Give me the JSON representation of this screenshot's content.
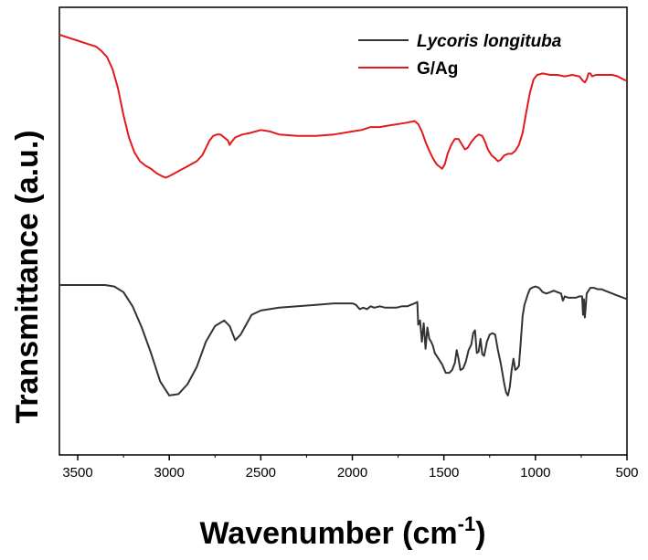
{
  "chart_data": {
    "type": "line",
    "xlabel": "Wavenumber (cm",
    "xlabel_superscript": "-1",
    "xlabel_close": ")",
    "ylabel": "Transmittance (a.u.)",
    "xlim": [
      3600,
      500
    ],
    "x_reversed": true,
    "xticks": [
      3500,
      3000,
      2500,
      2000,
      1500,
      1000,
      500
    ],
    "y_tick_labels": false,
    "legend_placement": "top-right",
    "series": [
      {
        "name": "Lycoris longituba",
        "name_italic": true,
        "color": "#333333",
        "points": [
          [
            3600,
            0.0
          ],
          [
            3500,
            0.0
          ],
          [
            3400,
            0.0
          ],
          [
            3350,
            0.0
          ],
          [
            3300,
            0.01
          ],
          [
            3250,
            0.05
          ],
          [
            3200,
            0.15
          ],
          [
            3150,
            0.3
          ],
          [
            3100,
            0.48
          ],
          [
            3050,
            0.68
          ],
          [
            3000,
            0.78
          ],
          [
            2950,
            0.77
          ],
          [
            2900,
            0.7
          ],
          [
            2850,
            0.58
          ],
          [
            2800,
            0.4
          ],
          [
            2750,
            0.29
          ],
          [
            2700,
            0.25
          ],
          [
            2670,
            0.29
          ],
          [
            2640,
            0.39
          ],
          [
            2610,
            0.35
          ],
          [
            2580,
            0.28
          ],
          [
            2550,
            0.21
          ],
          [
            2500,
            0.18
          ],
          [
            2400,
            0.16
          ],
          [
            2300,
            0.15
          ],
          [
            2200,
            0.14
          ],
          [
            2100,
            0.13
          ],
          [
            2050,
            0.13
          ],
          [
            2000,
            0.13
          ],
          [
            1980,
            0.14
          ],
          [
            1960,
            0.17
          ],
          [
            1940,
            0.16
          ],
          [
            1920,
            0.17
          ],
          [
            1900,
            0.15
          ],
          [
            1880,
            0.16
          ],
          [
            1850,
            0.15
          ],
          [
            1820,
            0.16
          ],
          [
            1790,
            0.16
          ],
          [
            1760,
            0.16
          ],
          [
            1730,
            0.15
          ],
          [
            1700,
            0.15
          ],
          [
            1660,
            0.13
          ],
          [
            1645,
            0.12
          ],
          [
            1640,
            0.28
          ],
          [
            1630,
            0.25
          ],
          [
            1620,
            0.4
          ],
          [
            1610,
            0.27
          ],
          [
            1600,
            0.45
          ],
          [
            1590,
            0.3
          ],
          [
            1580,
            0.38
          ],
          [
            1570,
            0.4
          ],
          [
            1560,
            0.43
          ],
          [
            1550,
            0.48
          ],
          [
            1530,
            0.52
          ],
          [
            1510,
            0.56
          ],
          [
            1490,
            0.62
          ],
          [
            1470,
            0.62
          ],
          [
            1455,
            0.6
          ],
          [
            1440,
            0.55
          ],
          [
            1430,
            0.46
          ],
          [
            1420,
            0.52
          ],
          [
            1410,
            0.6
          ],
          [
            1395,
            0.59
          ],
          [
            1380,
            0.54
          ],
          [
            1365,
            0.46
          ],
          [
            1350,
            0.42
          ],
          [
            1340,
            0.34
          ],
          [
            1330,
            0.32
          ],
          [
            1320,
            0.48
          ],
          [
            1310,
            0.47
          ],
          [
            1300,
            0.38
          ],
          [
            1290,
            0.49
          ],
          [
            1280,
            0.5
          ],
          [
            1265,
            0.4
          ],
          [
            1250,
            0.35
          ],
          [
            1235,
            0.34
          ],
          [
            1220,
            0.35
          ],
          [
            1205,
            0.46
          ],
          [
            1190,
            0.55
          ],
          [
            1170,
            0.7
          ],
          [
            1160,
            0.76
          ],
          [
            1150,
            0.78
          ],
          [
            1140,
            0.72
          ],
          [
            1130,
            0.6
          ],
          [
            1120,
            0.52
          ],
          [
            1110,
            0.6
          ],
          [
            1100,
            0.59
          ],
          [
            1090,
            0.57
          ],
          [
            1080,
            0.4
          ],
          [
            1070,
            0.22
          ],
          [
            1060,
            0.14
          ],
          [
            1050,
            0.1
          ],
          [
            1040,
            0.06
          ],
          [
            1030,
            0.03
          ],
          [
            1020,
            0.02
          ],
          [
            1000,
            0.01
          ],
          [
            980,
            0.02
          ],
          [
            960,
            0.05
          ],
          [
            940,
            0.06
          ],
          [
            920,
            0.05
          ],
          [
            900,
            0.04
          ],
          [
            880,
            0.05
          ],
          [
            860,
            0.06
          ],
          [
            850,
            0.11
          ],
          [
            840,
            0.08
          ],
          [
            820,
            0.09
          ],
          [
            800,
            0.09
          ],
          [
            780,
            0.09
          ],
          [
            760,
            0.08
          ],
          [
            745,
            0.08
          ],
          [
            740,
            0.21
          ],
          [
            735,
            0.1
          ],
          [
            730,
            0.23
          ],
          [
            725,
            0.15
          ],
          [
            720,
            0.06
          ],
          [
            700,
            0.02
          ],
          [
            680,
            0.02
          ],
          [
            660,
            0.03
          ],
          [
            640,
            0.03
          ],
          [
            620,
            0.04
          ],
          [
            600,
            0.05
          ],
          [
            580,
            0.06
          ],
          [
            560,
            0.07
          ],
          [
            540,
            0.08
          ],
          [
            520,
            0.09
          ],
          [
            500,
            0.1
          ]
        ]
      },
      {
        "name": "G/Ag",
        "name_italic": false,
        "color": "#e31a1c",
        "points": [
          [
            3600,
            0.0
          ],
          [
            3550,
            0.02
          ],
          [
            3500,
            0.04
          ],
          [
            3450,
            0.06
          ],
          [
            3400,
            0.08
          ],
          [
            3370,
            0.11
          ],
          [
            3340,
            0.15
          ],
          [
            3310,
            0.23
          ],
          [
            3280,
            0.36
          ],
          [
            3250,
            0.54
          ],
          [
            3220,
            0.69
          ],
          [
            3190,
            0.79
          ],
          [
            3160,
            0.85
          ],
          [
            3130,
            0.88
          ],
          [
            3100,
            0.9
          ],
          [
            3070,
            0.93
          ],
          [
            3040,
            0.95
          ],
          [
            3020,
            0.96
          ],
          [
            3000,
            0.95
          ],
          [
            2970,
            0.93
          ],
          [
            2940,
            0.91
          ],
          [
            2910,
            0.89
          ],
          [
            2880,
            0.87
          ],
          [
            2850,
            0.85
          ],
          [
            2820,
            0.81
          ],
          [
            2800,
            0.76
          ],
          [
            2780,
            0.71
          ],
          [
            2760,
            0.68
          ],
          [
            2740,
            0.67
          ],
          [
            2720,
            0.67
          ],
          [
            2700,
            0.69
          ],
          [
            2680,
            0.71
          ],
          [
            2670,
            0.74
          ],
          [
            2660,
            0.72
          ],
          [
            2640,
            0.69
          ],
          [
            2620,
            0.68
          ],
          [
            2600,
            0.67
          ],
          [
            2560,
            0.66
          ],
          [
            2500,
            0.64
          ],
          [
            2450,
            0.65
          ],
          [
            2400,
            0.67
          ],
          [
            2300,
            0.68
          ],
          [
            2200,
            0.68
          ],
          [
            2100,
            0.67
          ],
          [
            2000,
            0.65
          ],
          [
            1950,
            0.64
          ],
          [
            1900,
            0.62
          ],
          [
            1850,
            0.62
          ],
          [
            1800,
            0.61
          ],
          [
            1750,
            0.6
          ],
          [
            1700,
            0.59
          ],
          [
            1660,
            0.58
          ],
          [
            1640,
            0.6
          ],
          [
            1620,
            0.65
          ],
          [
            1600,
            0.72
          ],
          [
            1580,
            0.78
          ],
          [
            1560,
            0.83
          ],
          [
            1540,
            0.87
          ],
          [
            1520,
            0.89
          ],
          [
            1510,
            0.9
          ],
          [
            1495,
            0.87
          ],
          [
            1480,
            0.8
          ],
          [
            1460,
            0.74
          ],
          [
            1440,
            0.7
          ],
          [
            1420,
            0.7
          ],
          [
            1400,
            0.74
          ],
          [
            1385,
            0.77
          ],
          [
            1370,
            0.76
          ],
          [
            1350,
            0.72
          ],
          [
            1330,
            0.69
          ],
          [
            1310,
            0.67
          ],
          [
            1290,
            0.68
          ],
          [
            1275,
            0.72
          ],
          [
            1260,
            0.77
          ],
          [
            1240,
            0.81
          ],
          [
            1220,
            0.83
          ],
          [
            1205,
            0.85
          ],
          [
            1190,
            0.84
          ],
          [
            1170,
            0.81
          ],
          [
            1150,
            0.8
          ],
          [
            1130,
            0.8
          ],
          [
            1110,
            0.78
          ],
          [
            1090,
            0.74
          ],
          [
            1070,
            0.66
          ],
          [
            1050,
            0.52
          ],
          [
            1030,
            0.39
          ],
          [
            1010,
            0.3
          ],
          [
            990,
            0.27
          ],
          [
            960,
            0.26
          ],
          [
            920,
            0.27
          ],
          [
            880,
            0.27
          ],
          [
            840,
            0.28
          ],
          [
            800,
            0.27
          ],
          [
            760,
            0.28
          ],
          [
            740,
            0.31
          ],
          [
            730,
            0.32
          ],
          [
            720,
            0.3
          ],
          [
            710,
            0.26
          ],
          [
            700,
            0.26
          ],
          [
            690,
            0.28
          ],
          [
            670,
            0.27
          ],
          [
            640,
            0.27
          ],
          [
            610,
            0.27
          ],
          [
            580,
            0.27
          ],
          [
            550,
            0.28
          ],
          [
            520,
            0.3
          ],
          [
            500,
            0.31
          ]
        ]
      }
    ]
  }
}
